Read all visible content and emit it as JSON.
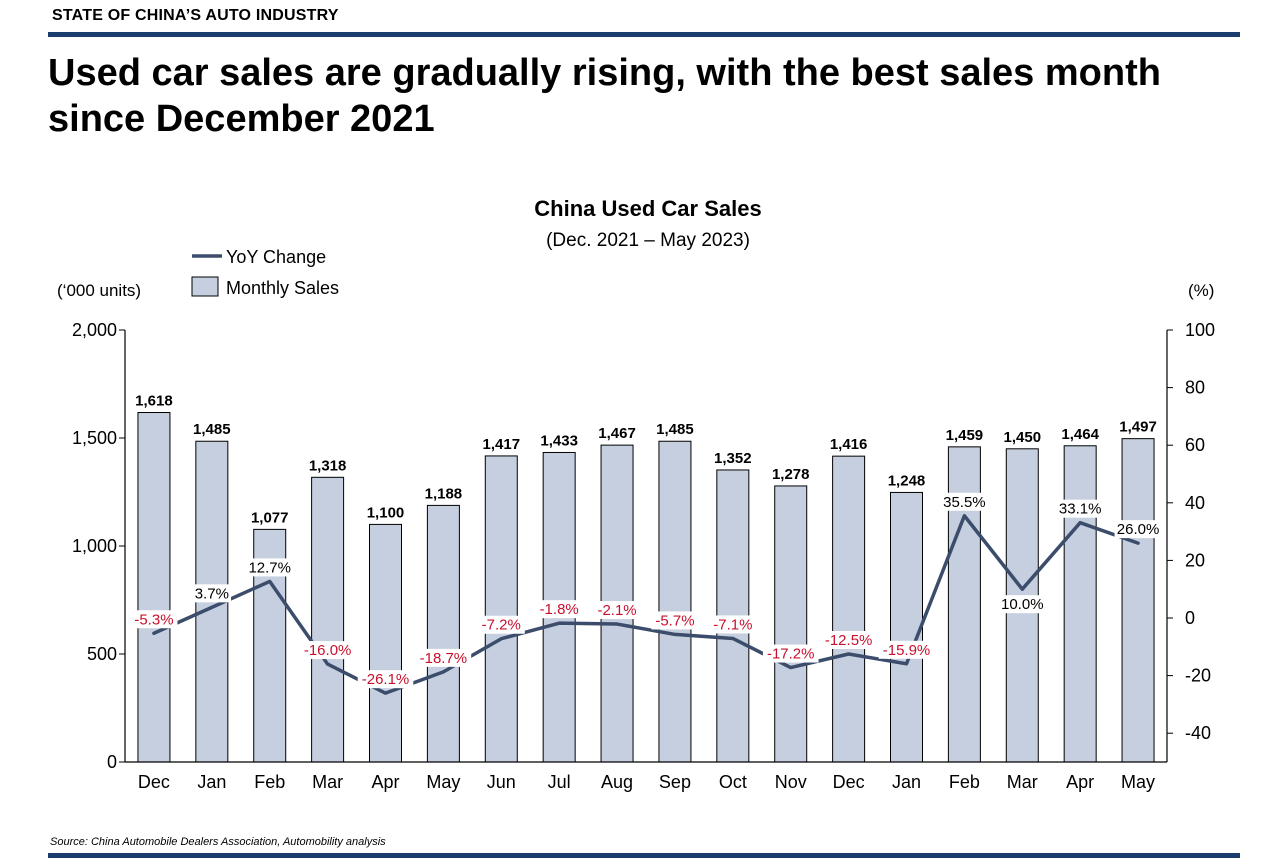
{
  "header": {
    "kicker": "STATE OF CHINA’S AUTO INDUSTRY",
    "headline": "Used car sales are gradually rising, with the best sales month since December 2021"
  },
  "footer": {
    "source": "Source: China Automobile Dealers Association, Automobility analysis"
  },
  "colors": {
    "bar_fill": "#c5cfe0",
    "bar_stroke": "#000000",
    "line": "#3b4d6b",
    "negative_label": "#c8102e",
    "rule": "#1b3d6e"
  },
  "chart_data": {
    "type": "bar",
    "title": "China Used Car Sales",
    "subtitle": "(Dec. 2021 – May 2023)",
    "ylabel": "(‘000 units)",
    "y2label": "(%)",
    "ylim": [
      0,
      2000
    ],
    "y2lim": [
      -50,
      100
    ],
    "yticks": [
      "0",
      "500",
      "1,000",
      "1,500",
      "2,000"
    ],
    "y2ticks": [
      "-40",
      "-20",
      "0",
      "20",
      "40",
      "60",
      "80",
      "100"
    ],
    "grid": false,
    "legend": {
      "position": "top-left",
      "entries": [
        "YoY Change",
        "Monthly Sales"
      ]
    },
    "categories": [
      "Dec",
      "Jan",
      "Feb",
      "Mar",
      "Apr",
      "May",
      "Jun",
      "Jul",
      "Aug",
      "Sep",
      "Oct",
      "Nov",
      "Dec",
      "Jan",
      "Feb",
      "Mar",
      "Apr",
      "May"
    ],
    "series": [
      {
        "name": "Monthly Sales",
        "type": "bar",
        "axis": "left",
        "values": [
          1618,
          1485,
          1077,
          1318,
          1100,
          1188,
          1417,
          1433,
          1467,
          1485,
          1352,
          1278,
          1416,
          1248,
          1459,
          1450,
          1464,
          1497
        ],
        "labels": [
          "1,618",
          "1,485",
          "1,077",
          "1,318",
          "1,100",
          "1,188",
          "1,417",
          "1,433",
          "1,467",
          "1,485",
          "1,352",
          "1,278",
          "1,416",
          "1,248",
          "1,459",
          "1,450",
          "1,464",
          "1,497"
        ]
      },
      {
        "name": "YoY Change",
        "type": "line",
        "axis": "right",
        "values": [
          -5.3,
          3.7,
          12.7,
          -16.0,
          -26.1,
          -18.7,
          -7.2,
          -1.8,
          -2.1,
          -5.7,
          -7.1,
          -17.2,
          -12.5,
          -15.9,
          35.5,
          10.0,
          33.1,
          26.0
        ],
        "labels": [
          "-5.3%",
          "3.7%",
          "12.7%",
          "-16.0%",
          "-26.1%",
          "-18.7%",
          "-7.2%",
          "-1.8%",
          "-2.1%",
          "-5.7%",
          "-7.1%",
          "-17.2%",
          "-12.5%",
          "-15.9%",
          "35.5%",
          "10.0%",
          "33.1%",
          "26.0%"
        ]
      }
    ]
  }
}
